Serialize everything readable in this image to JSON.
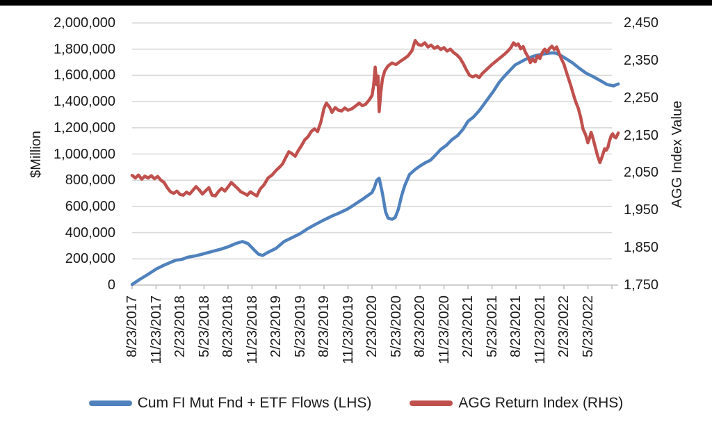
{
  "window": {
    "top_border_color": "#000000",
    "background": "#FFFFFF"
  },
  "chart": {
    "left_axis": {
      "title": "$Million",
      "tick_labels": [
        "2,000,000",
        "1,800,000",
        "1,600,000",
        "1,400,000",
        "1,200,000",
        "1,000,000",
        "800,000",
        "600,000",
        "400,000",
        "200,000",
        "0"
      ]
    },
    "right_axis": {
      "title": "AGG Index Value",
      "tick_labels": [
        "2,450",
        "2,350",
        "2,250",
        "2,150",
        "2,050",
        "1,950",
        "1,850",
        "1,750"
      ]
    },
    "x_axis": {
      "tick_labels": [
        "8/23/2017",
        "11/23/2017",
        "2/23/2018",
        "5/23/2018",
        "8/23/2018",
        "11/23/2018",
        "2/23/2019",
        "5/23/2019",
        "8/23/2019",
        "11/23/2019",
        "2/23/2020",
        "5/23/2020",
        "8/23/2020",
        "11/23/2020",
        "2/23/2021",
        "5/23/2021",
        "8/23/2021",
        "11/23/2021",
        "2/23/2022",
        "5/23/2022"
      ]
    },
    "legend": [
      {
        "label": "Cum FI Mut Fnd + ETF Flows (LHS)",
        "color": "#4F81BD"
      },
      {
        "label": "AGG Return Index (RHS)",
        "color": "#C0504D"
      }
    ],
    "colors": {
      "gridline": "#D9D9D9",
      "axis_line": "#BFBFBF",
      "text": "#1a1a1a"
    }
  },
  "chart_data": {
    "type": "line",
    "title": "",
    "x_unit": "months_since_8/23/2017",
    "x_tick_labels": [
      "8/23/2017",
      "11/23/2017",
      "2/23/2018",
      "5/23/2018",
      "8/23/2018",
      "11/23/2018",
      "2/23/2019",
      "5/23/2019",
      "8/23/2019",
      "11/23/2019",
      "2/23/2020",
      "5/23/2020",
      "8/23/2020",
      "11/23/2020",
      "2/23/2021",
      "5/23/2021",
      "8/23/2021",
      "11/23/2021",
      "2/23/2022",
      "5/23/2022"
    ],
    "left_axis": {
      "label": "$Million",
      "min": 0,
      "max": 2000000,
      "step": 200000
    },
    "right_axis": {
      "label": "AGG Index Value",
      "min": 1750,
      "max": 2450,
      "step": 100
    },
    "grid": "horizontal",
    "legend_position": "bottom",
    "series": [
      {
        "name": "Cum FI Mut Fnd + ETF Flows (LHS)",
        "axis": "left",
        "color": "#4F81BD",
        "points": [
          [
            0,
            5000
          ],
          [
            1,
            45000
          ],
          [
            2,
            82000
          ],
          [
            3,
            122000
          ],
          [
            4,
            152000
          ],
          [
            5,
            178000
          ],
          [
            5.5,
            190000
          ],
          [
            6.2,
            196000
          ],
          [
            7,
            213000
          ],
          [
            8,
            224000
          ],
          [
            9,
            240000
          ],
          [
            10,
            256000
          ],
          [
            11,
            272000
          ],
          [
            12,
            292000
          ],
          [
            13,
            318000
          ],
          [
            13.8,
            332000
          ],
          [
            14.5,
            316000
          ],
          [
            15.2,
            272000
          ],
          [
            15.8,
            236000
          ],
          [
            16.3,
            226000
          ],
          [
            17,
            250000
          ],
          [
            18,
            280000
          ],
          [
            19,
            332000
          ],
          [
            20,
            362000
          ],
          [
            21,
            392000
          ],
          [
            22,
            432000
          ],
          [
            23,
            465000
          ],
          [
            24,
            497000
          ],
          [
            25,
            527000
          ],
          [
            26,
            553000
          ],
          [
            27,
            582000
          ],
          [
            28,
            622000
          ],
          [
            29,
            662000
          ],
          [
            30,
            706000
          ],
          [
            30.3,
            745000
          ],
          [
            30.6,
            800000
          ],
          [
            30.9,
            815000
          ],
          [
            31.3,
            700000
          ],
          [
            31.7,
            560000
          ],
          [
            32,
            512000
          ],
          [
            32.5,
            502000
          ],
          [
            32.9,
            515000
          ],
          [
            33.3,
            580000
          ],
          [
            33.7,
            680000
          ],
          [
            34.1,
            760000
          ],
          [
            34.7,
            844000
          ],
          [
            35.4,
            882000
          ],
          [
            36,
            908000
          ],
          [
            36.7,
            935000
          ],
          [
            37.3,
            952000
          ],
          [
            38,
            995000
          ],
          [
            38.6,
            1035000
          ],
          [
            39.3,
            1067000
          ],
          [
            40,
            1110000
          ],
          [
            40.7,
            1140000
          ],
          [
            41.4,
            1190000
          ],
          [
            42,
            1250000
          ],
          [
            42.7,
            1282000
          ],
          [
            43.4,
            1330000
          ],
          [
            44,
            1380000
          ],
          [
            44.6,
            1430000
          ],
          [
            45.2,
            1480000
          ],
          [
            45.9,
            1547000
          ],
          [
            46.5,
            1590000
          ],
          [
            47.2,
            1635000
          ],
          [
            47.9,
            1680000
          ],
          [
            48.5,
            1700000
          ],
          [
            49.2,
            1722000
          ],
          [
            49.9,
            1740000
          ],
          [
            50.5,
            1752000
          ],
          [
            51.2,
            1760000
          ],
          [
            52,
            1768000
          ],
          [
            52.5,
            1772000
          ],
          [
            53,
            1770000
          ],
          [
            53.5,
            1756000
          ],
          [
            54.2,
            1730000
          ],
          [
            55.1,
            1695000
          ],
          [
            55.9,
            1655000
          ],
          [
            56.8,
            1616000
          ],
          [
            57.7,
            1589000
          ],
          [
            58.5,
            1562000
          ],
          [
            59.4,
            1530000
          ],
          [
            60.2,
            1520000
          ],
          [
            60.8,
            1535000
          ]
        ]
      },
      {
        "name": "AGG Return Index (RHS)",
        "axis": "right",
        "color": "#C0504D",
        "points": [
          [
            0,
            2043
          ],
          [
            0.4,
            2036
          ],
          [
            0.8,
            2044
          ],
          [
            1.2,
            2033
          ],
          [
            1.6,
            2041
          ],
          [
            2,
            2036
          ],
          [
            2.4,
            2042
          ],
          [
            2.8,
            2034
          ],
          [
            3.2,
            2040
          ],
          [
            3.6,
            2030
          ],
          [
            4,
            2024
          ],
          [
            4.4,
            2010
          ],
          [
            4.8,
            1999
          ],
          [
            5.2,
            1995
          ],
          [
            5.6,
            2001
          ],
          [
            6,
            1992
          ],
          [
            6.4,
            1990
          ],
          [
            6.8,
            1998
          ],
          [
            7.2,
            1993
          ],
          [
            7.6,
            2003
          ],
          [
            8,
            2013
          ],
          [
            8.4,
            2004
          ],
          [
            8.8,
            1993
          ],
          [
            9.2,
            2002
          ],
          [
            9.6,
            2010
          ],
          [
            10,
            1990
          ],
          [
            10.4,
            1988
          ],
          [
            10.8,
            2000
          ],
          [
            11.2,
            2008
          ],
          [
            11.6,
            2001
          ],
          [
            12,
            2012
          ],
          [
            12.4,
            2024
          ],
          [
            12.8,
            2016
          ],
          [
            13.2,
            2008
          ],
          [
            13.6,
            1999
          ],
          [
            14,
            1995
          ],
          [
            14.4,
            1990
          ],
          [
            14.8,
            1999
          ],
          [
            15.2,
            1993
          ],
          [
            15.6,
            1988
          ],
          [
            16,
            2006
          ],
          [
            16.5,
            2018
          ],
          [
            17,
            2036
          ],
          [
            17.5,
            2044
          ],
          [
            18,
            2056
          ],
          [
            18.4,
            2064
          ],
          [
            18.8,
            2073
          ],
          [
            19.2,
            2090
          ],
          [
            19.6,
            2106
          ],
          [
            20,
            2101
          ],
          [
            20.4,
            2094
          ],
          [
            20.8,
            2110
          ],
          [
            21.2,
            2123
          ],
          [
            21.6,
            2138
          ],
          [
            22,
            2146
          ],
          [
            22.4,
            2160
          ],
          [
            22.8,
            2167
          ],
          [
            23.2,
            2160
          ],
          [
            23.6,
            2185
          ],
          [
            24,
            2222
          ],
          [
            24.3,
            2236
          ],
          [
            24.7,
            2225
          ],
          [
            25,
            2211
          ],
          [
            25.4,
            2224
          ],
          [
            25.8,
            2217
          ],
          [
            26.2,
            2215
          ],
          [
            26.6,
            2223
          ],
          [
            27,
            2217
          ],
          [
            27.5,
            2221
          ],
          [
            28,
            2229
          ],
          [
            28.4,
            2236
          ],
          [
            28.8,
            2229
          ],
          [
            29.2,
            2233
          ],
          [
            29.6,
            2243
          ],
          [
            30,
            2256
          ],
          [
            30.2,
            2282
          ],
          [
            30.4,
            2332
          ],
          [
            30.6,
            2285
          ],
          [
            30.75,
            2308
          ],
          [
            30.9,
            2213
          ],
          [
            31.1,
            2265
          ],
          [
            31.3,
            2300
          ],
          [
            31.6,
            2322
          ],
          [
            32,
            2335
          ],
          [
            32.5,
            2343
          ],
          [
            33,
            2339
          ],
          [
            33.5,
            2347
          ],
          [
            34,
            2354
          ],
          [
            34.5,
            2362
          ],
          [
            35,
            2376
          ],
          [
            35.4,
            2403
          ],
          [
            35.8,
            2392
          ],
          [
            36.2,
            2390
          ],
          [
            36.6,
            2397
          ],
          [
            37,
            2386
          ],
          [
            37.4,
            2391
          ],
          [
            37.8,
            2382
          ],
          [
            38.2,
            2387
          ],
          [
            38.6,
            2379
          ],
          [
            39,
            2384
          ],
          [
            39.4,
            2375
          ],
          [
            39.8,
            2380
          ],
          [
            40.2,
            2371
          ],
          [
            40.6,
            2365
          ],
          [
            41,
            2356
          ],
          [
            41.4,
            2342
          ],
          [
            41.8,
            2325
          ],
          [
            42.2,
            2310
          ],
          [
            42.6,
            2306
          ],
          [
            43,
            2310
          ],
          [
            43.4,
            2304
          ],
          [
            43.8,
            2315
          ],
          [
            44.2,
            2323
          ],
          [
            44.6,
            2331
          ],
          [
            45,
            2339
          ],
          [
            45.4,
            2346
          ],
          [
            45.8,
            2353
          ],
          [
            46.2,
            2360
          ],
          [
            46.6,
            2367
          ],
          [
            47,
            2375
          ],
          [
            47.4,
            2385
          ],
          [
            47.7,
            2397
          ],
          [
            48,
            2390
          ],
          [
            48.3,
            2394
          ],
          [
            48.6,
            2381
          ],
          [
            48.9,
            2387
          ],
          [
            49.2,
            2371
          ],
          [
            49.5,
            2360
          ],
          [
            49.8,
            2344
          ],
          [
            50.1,
            2354
          ],
          [
            50.4,
            2346
          ],
          [
            50.7,
            2362
          ],
          [
            51,
            2355
          ],
          [
            51.3,
            2371
          ],
          [
            51.6,
            2380
          ],
          [
            51.9,
            2371
          ],
          [
            52.2,
            2382
          ],
          [
            52.5,
            2388
          ],
          [
            52.8,
            2379
          ],
          [
            53.1,
            2386
          ],
          [
            53.4,
            2369
          ],
          [
            53.7,
            2353
          ],
          [
            54,
            2340
          ],
          [
            54.3,
            2320
          ],
          [
            54.6,
            2300
          ],
          [
            54.9,
            2280
          ],
          [
            55.2,
            2258
          ],
          [
            55.5,
            2238
          ],
          [
            55.8,
            2222
          ],
          [
            56.1,
            2198
          ],
          [
            56.4,
            2166
          ],
          [
            56.7,
            2152
          ],
          [
            57,
            2130
          ],
          [
            57.2,
            2142
          ],
          [
            57.4,
            2158
          ],
          [
            57.6,
            2145
          ],
          [
            57.9,
            2120
          ],
          [
            58.2,
            2096
          ],
          [
            58.5,
            2077
          ],
          [
            58.8,
            2094
          ],
          [
            59.1,
            2114
          ],
          [
            59.3,
            2110
          ],
          [
            59.5,
            2118
          ],
          [
            59.7,
            2135
          ],
          [
            59.9,
            2148
          ],
          [
            60.1,
            2154
          ],
          [
            60.3,
            2146
          ],
          [
            60.5,
            2143
          ],
          [
            60.8,
            2156
          ]
        ]
      }
    ]
  }
}
